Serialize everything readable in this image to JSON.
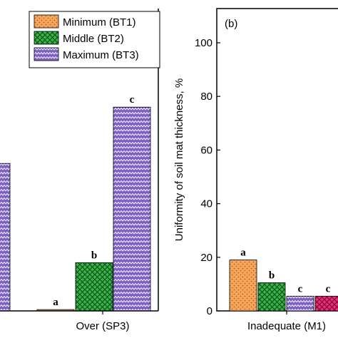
{
  "chart_data": [
    {
      "panel_label": "",
      "type": "bar",
      "categories": [
        "",
        "Over (SP3)"
      ],
      "series": [
        {
          "name": "Minimum (BT1)",
          "values": [
            null,
            0.5
          ],
          "color": "#f5a04a",
          "pattern": "dots",
          "letters": [
            "",
            "a"
          ]
        },
        {
          "name": "Middle (BT2)",
          "values": [
            null,
            18
          ],
          "color": "#3cb44a",
          "pattern": "crosshatch",
          "letters": [
            "",
            "b"
          ]
        },
        {
          "name": "Maximum (BT3)",
          "values": [
            55,
            76
          ],
          "color": "#7b5fbf",
          "pattern": "zigzag",
          "letters": [
            "",
            "c"
          ]
        }
      ],
      "legend": {
        "placement": "top",
        "entries": [
          "Minimum (BT1)",
          "Middle (BT2)",
          "Maximum (BT3)"
        ]
      },
      "xlabel": "",
      "ylabel": "",
      "ylim": [
        0,
        110
      ],
      "grid": false
    },
    {
      "panel_label": "(b)",
      "type": "bar",
      "categories": [
        "Inadequate (M1)"
      ],
      "series": [
        {
          "name": "Minimum (BT1)",
          "values": [
            19
          ],
          "color": "#f5a04a",
          "pattern": "dots",
          "letters": [
            "a"
          ]
        },
        {
          "name": "Middle (BT2)",
          "values": [
            10.5
          ],
          "color": "#3cb44a",
          "pattern": "crosshatch",
          "letters": [
            "b"
          ]
        },
        {
          "name": "Maximum (BT3)",
          "values": [
            5.5
          ],
          "color": "#7b5fbf",
          "pattern": "zigzag",
          "letters": [
            "c"
          ]
        },
        {
          "name": "",
          "values": [
            5.5
          ],
          "color": "#e8307a",
          "pattern": "crosshatch",
          "letters": [
            "c"
          ]
        }
      ],
      "xlabel": "",
      "ylabel": "Uniformity of soil mat thickness, %",
      "ylim": [
        0,
        110
      ],
      "yticks": [
        0,
        20,
        40,
        60,
        80,
        100
      ],
      "grid": false
    }
  ]
}
